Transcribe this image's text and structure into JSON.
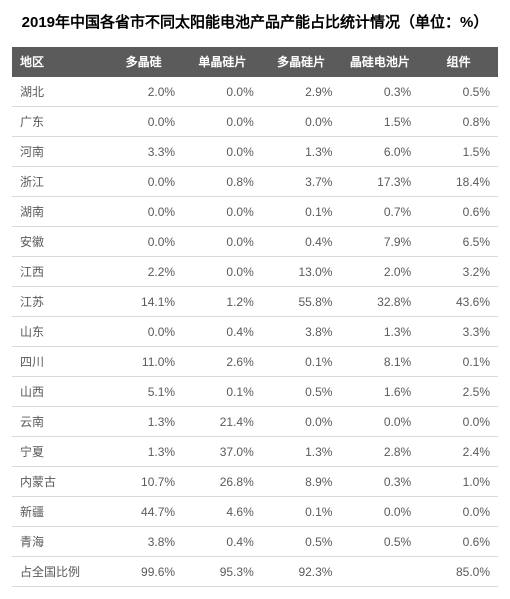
{
  "title": "2019年中国各省市不同太阳能电池产品产能占比统计情况（单位：%）",
  "title_fontsize": 15,
  "cell_fontsize": 12,
  "colors": {
    "header_bg": "#5b5b5b",
    "header_text": "#ffffff",
    "row_text": "#5a5a5a",
    "row_border": "#d9d9d9",
    "row_alt_bg": "#ffffff",
    "row_bg": "#ffffff"
  },
  "table": {
    "columns": [
      "地区",
      "多晶硅",
      "单晶硅片",
      "多晶硅片",
      "晶硅电池片",
      "组件"
    ],
    "rows": [
      [
        "湖北",
        "2.0%",
        "0.0%",
        "2.9%",
        "0.3%",
        "0.5%"
      ],
      [
        "广东",
        "0.0%",
        "0.0%",
        "0.0%",
        "1.5%",
        "0.8%"
      ],
      [
        "河南",
        "3.3%",
        "0.0%",
        "1.3%",
        "6.0%",
        "1.5%"
      ],
      [
        "浙江",
        "0.0%",
        "0.8%",
        "3.7%",
        "17.3%",
        "18.4%"
      ],
      [
        "湖南",
        "0.0%",
        "0.0%",
        "0.1%",
        "0.7%",
        "0.6%"
      ],
      [
        "安徽",
        "0.0%",
        "0.0%",
        "0.4%",
        "7.9%",
        "6.5%"
      ],
      [
        "江西",
        "2.2%",
        "0.0%",
        "13.0%",
        "2.0%",
        "3.2%"
      ],
      [
        "江苏",
        "14.1%",
        "1.2%",
        "55.8%",
        "32.8%",
        "43.6%"
      ],
      [
        "山东",
        "0.0%",
        "0.4%",
        "3.8%",
        "1.3%",
        "3.3%"
      ],
      [
        "四川",
        "11.0%",
        "2.6%",
        "0.1%",
        "8.1%",
        "0.1%"
      ],
      [
        "山西",
        "5.1%",
        "0.1%",
        "0.5%",
        "1.6%",
        "2.5%"
      ],
      [
        "云南",
        "1.3%",
        "21.4%",
        "0.0%",
        "0.0%",
        "0.0%"
      ],
      [
        "宁夏",
        "1.3%",
        "37.0%",
        "1.3%",
        "2.8%",
        "2.4%"
      ],
      [
        "内蒙古",
        "10.7%",
        "26.8%",
        "8.9%",
        "0.3%",
        "1.0%"
      ],
      [
        "新疆",
        "44.7%",
        "4.6%",
        "0.1%",
        "0.0%",
        "0.0%"
      ],
      [
        "青海",
        "3.8%",
        "0.4%",
        "0.5%",
        "0.5%",
        "0.6%"
      ],
      [
        "占全国比例",
        "99.6%",
        "95.3%",
        "92.3%",
        "",
        "85.0%"
      ]
    ]
  }
}
